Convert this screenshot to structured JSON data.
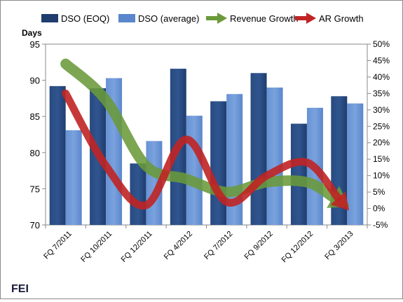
{
  "chart_data": {
    "type": "bar",
    "title": "",
    "ylabel": "Days",
    "company": "FEI",
    "categories": [
      "FQ 7/2011",
      "FQ 10/2011",
      "FQ 12/2011",
      "FQ 4/2012",
      "FQ 7/2012",
      "FQ 9/2012",
      "FQ 12/2012",
      "FQ 3/2013"
    ],
    "ylim": [
      70,
      95
    ],
    "y_ticks": [
      70,
      75,
      80,
      85,
      90,
      95
    ],
    "y2lim": [
      -5,
      50
    ],
    "y2_ticks": [
      "-5%",
      "0%",
      "5%",
      "10%",
      "15%",
      "20%",
      "25%",
      "30%",
      "35%",
      "40%",
      "45%",
      "50%"
    ],
    "legend_position": "top",
    "grid": false,
    "series": [
      {
        "name": "DSO (EOQ)",
        "kind": "bar",
        "axis": "left",
        "color": "#1f3d6e",
        "values": [
          89.2,
          88.9,
          78.5,
          91.6,
          87.1,
          91.0,
          84.0,
          87.8
        ]
      },
      {
        "name": "DSO (average)",
        "kind": "bar",
        "axis": "left",
        "color": "#5a86cc",
        "values": [
          83.1,
          90.3,
          81.6,
          85.1,
          88.1,
          89.0,
          86.2,
          86.8
        ]
      },
      {
        "name": "Revenue Growth",
        "kind": "arrow-line",
        "axis": "right",
        "color": "#6a9a3a",
        "values": [
          44,
          33,
          13,
          9,
          5,
          8,
          8,
          1
        ]
      },
      {
        "name": "AR Growth",
        "kind": "arrow-line",
        "axis": "right",
        "color": "#c02424",
        "values": [
          35,
          13,
          1,
          21,
          2,
          10,
          14,
          0
        ]
      }
    ]
  }
}
